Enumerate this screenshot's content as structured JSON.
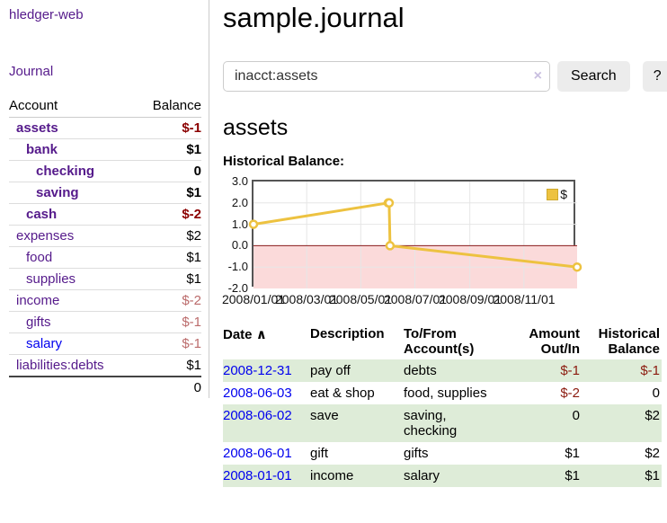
{
  "app": {
    "title": "hledger-web"
  },
  "sidebar": {
    "journal_label": "Journal",
    "accounts": {
      "header_account": "Account",
      "header_balance": "Balance",
      "rows": [
        {
          "name": "assets",
          "indent": 1,
          "bold": true,
          "balance": "$-1",
          "neg": "strong"
        },
        {
          "name": "bank",
          "indent": 2,
          "bold": true,
          "balance": "$1"
        },
        {
          "name": "checking",
          "indent": 3,
          "bold": true,
          "balance": "0"
        },
        {
          "name": "saving",
          "indent": 3,
          "bold": true,
          "balance": "$1"
        },
        {
          "name": "cash",
          "indent": 2,
          "bold": true,
          "balance": "$-2",
          "neg": "strong"
        },
        {
          "name": "expenses",
          "indent": 1,
          "bold": false,
          "balance": "$2"
        },
        {
          "name": "food",
          "indent": 2,
          "bold": false,
          "balance": "$1"
        },
        {
          "name": "supplies",
          "indent": 2,
          "bold": false,
          "balance": "$1"
        },
        {
          "name": "income",
          "indent": 1,
          "bold": false,
          "balance": "$-2",
          "neg": "dim"
        },
        {
          "name": "gifts",
          "indent": 2,
          "bold": false,
          "balance": "$-1",
          "neg": "dim"
        },
        {
          "name": "salary",
          "indent": 2,
          "bold": false,
          "balance": "$-1",
          "neg": "dim",
          "link": "blue"
        },
        {
          "name": "liabilities:debts",
          "indent": 1,
          "bold": false,
          "balance": "$1"
        }
      ],
      "total": "0"
    }
  },
  "main": {
    "title": "sample.journal",
    "search": {
      "value": "inacct:assets",
      "clear_icon": "×",
      "search_button": "Search",
      "help_button": "?"
    },
    "account_heading": "assets",
    "chart_label": "Historical Balance:",
    "register": {
      "headers": {
        "date": "Date",
        "sort_indicator": "∧",
        "description": "Description",
        "tofrom": "To/From Account(s)",
        "amount": "Amount Out/In",
        "balance": "Historical Balance"
      },
      "rows": [
        {
          "date": "2008-12-31",
          "description": "pay off",
          "tofrom": "debts",
          "amount": "$-1",
          "amount_neg": true,
          "balance": "$-1",
          "balance_neg": true,
          "striped": true
        },
        {
          "date": "2008-06-03",
          "description": "eat & shop",
          "tofrom": "food, supplies",
          "amount": "$-2",
          "amount_neg": true,
          "balance": "0",
          "balance_neg": false,
          "striped": false
        },
        {
          "date": "2008-06-02",
          "description": "save",
          "tofrom": "saving, checking",
          "amount": "0",
          "amount_neg": false,
          "balance": "$2",
          "balance_neg": false,
          "striped": true
        },
        {
          "date": "2008-06-01",
          "description": "gift",
          "tofrom": "gifts",
          "amount": "$1",
          "amount_neg": false,
          "balance": "$2",
          "balance_neg": false,
          "striped": false
        },
        {
          "date": "2008-01-01",
          "description": "income",
          "tofrom": "salary",
          "amount": "$1",
          "amount_neg": false,
          "balance": "$1",
          "balance_neg": false,
          "striped": true
        }
      ]
    }
  },
  "chart_data": {
    "type": "line",
    "title": "Historical Balance:",
    "x_range": [
      "2008-01-01",
      "2008-12-31"
    ],
    "ylim": [
      -2,
      3
    ],
    "y_ticks": [
      "3.0",
      "2.0",
      "1.0",
      "0.0",
      "-1.0",
      "-2.0"
    ],
    "x_ticks": [
      "2008/01/01",
      "2008/03/01",
      "2008/05/01",
      "2008/07/01",
      "2008/09/01",
      "2008/11/01"
    ],
    "grid": true,
    "series": [
      {
        "name": "$",
        "color": "#edc240",
        "points": [
          [
            "2008-01-01",
            1
          ],
          [
            "2008-06-01",
            2
          ],
          [
            "2008-06-02",
            2
          ],
          [
            "2008-06-03",
            0
          ],
          [
            "2008-12-31",
            -1
          ]
        ]
      }
    ],
    "legend": {
      "label": "$",
      "position": "top-right"
    },
    "negative_region_color": "#fbdada",
    "zero_line_color": "#8b1a1a",
    "gridline_color": "#e6e6e6"
  },
  "colors": {
    "link_visited_purple": "#551a8b",
    "link_blue": "#0000ee",
    "negative_strong": "#8b0000",
    "negative_dim": "#bb6b6b",
    "register_stripe_green": "#deecd8",
    "chart_line_yellow": "#edc240",
    "button_gray": "#ececec"
  }
}
